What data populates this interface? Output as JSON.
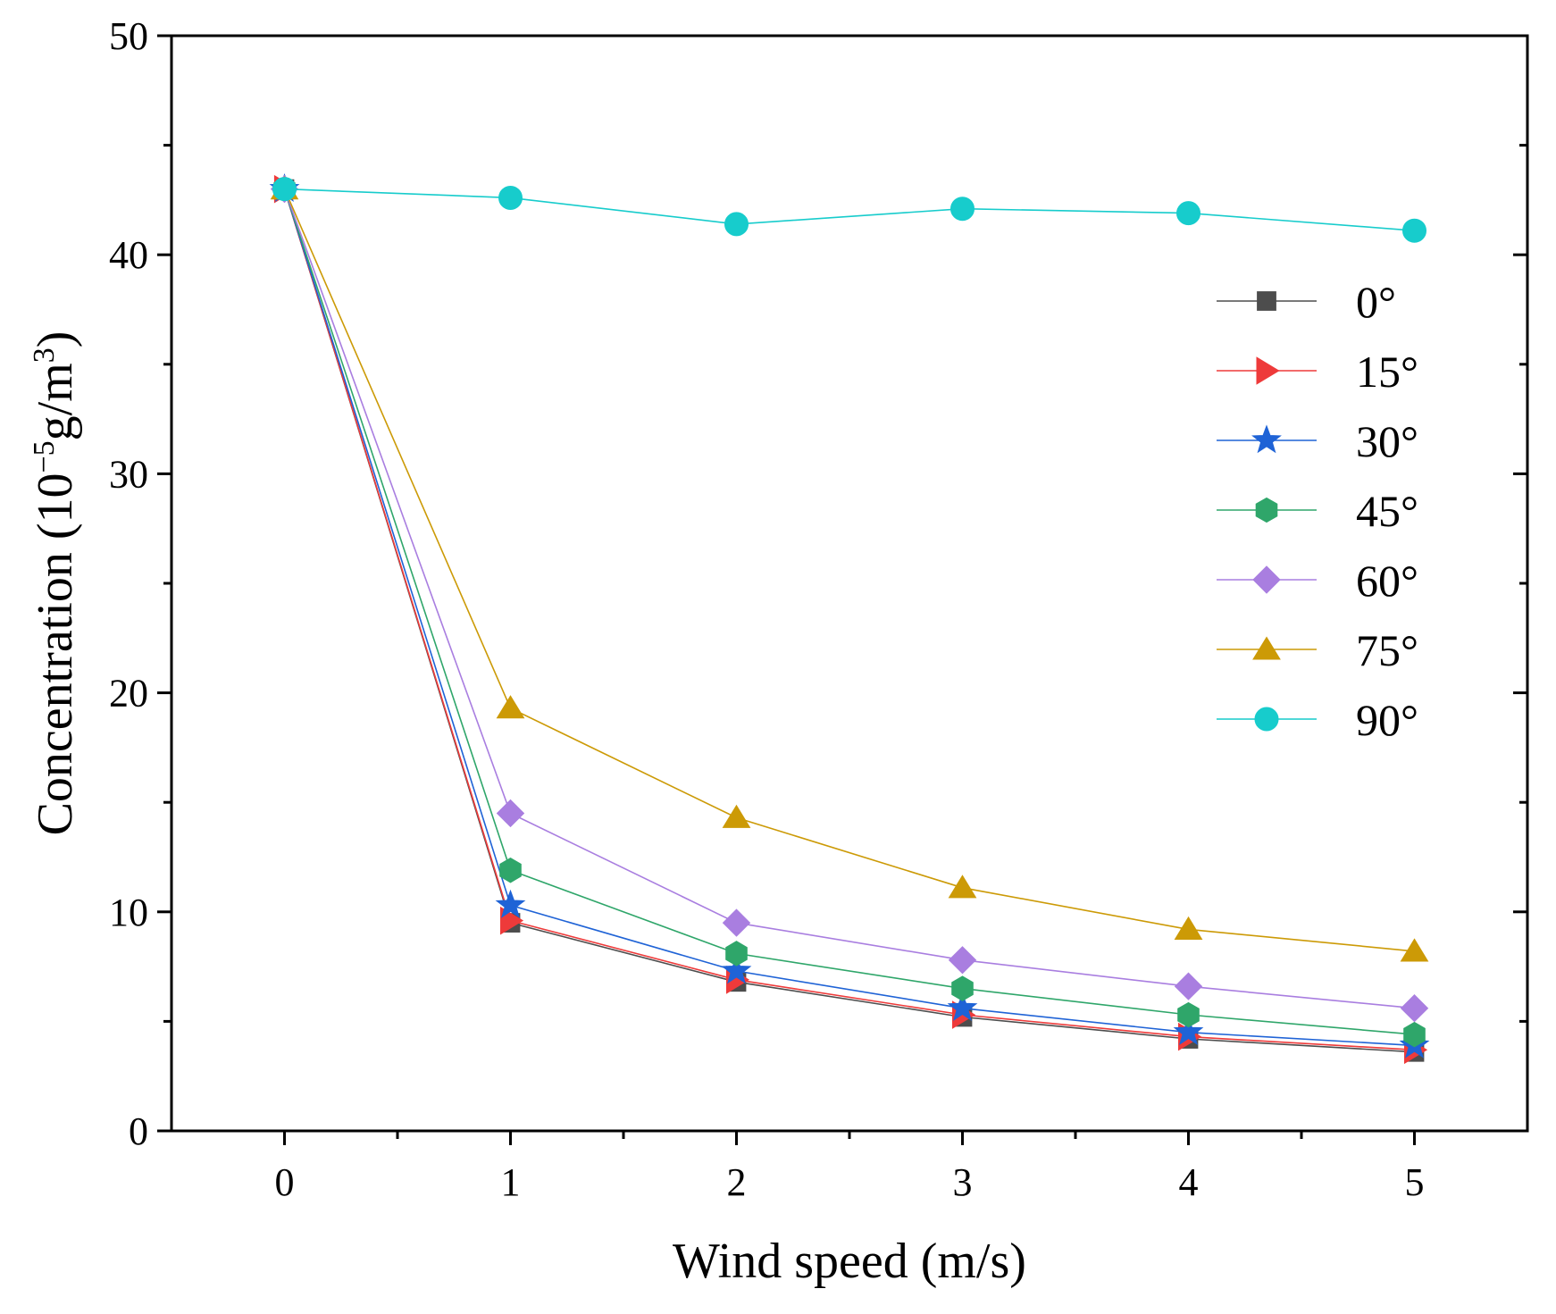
{
  "chart_data": {
    "type": "line",
    "title": "",
    "xlabel": "Wind speed (m/s)",
    "ylabel": {
      "prefix": "Concentration (10",
      "exp1": "−5",
      "middle": "g/m",
      "exp2": "3",
      "suffix": ")"
    },
    "xlim": [
      -0.5,
      5.5
    ],
    "ylim": [
      0,
      50
    ],
    "xticks": [
      0,
      1,
      2,
      3,
      4,
      5
    ],
    "yticks": [
      0,
      10,
      20,
      30,
      40,
      50
    ],
    "x": [
      0,
      1,
      2,
      3,
      4,
      5
    ],
    "grid": false,
    "legend_position": "right",
    "series": [
      {
        "name": "0°",
        "color": "#4d4d4d",
        "marker": "square",
        "values": [
          43.0,
          9.5,
          6.8,
          5.2,
          4.2,
          3.6
        ]
      },
      {
        "name": "15°",
        "color": "#ee3a3a",
        "marker": "triangle-right",
        "values": [
          43.0,
          9.6,
          6.9,
          5.3,
          4.3,
          3.7
        ]
      },
      {
        "name": "30°",
        "color": "#1f63d6",
        "marker": "star",
        "values": [
          43.0,
          10.3,
          7.3,
          5.6,
          4.5,
          3.9
        ]
      },
      {
        "name": "45°",
        "color": "#2fa66a",
        "marker": "hexagon",
        "values": [
          43.0,
          11.9,
          8.1,
          6.5,
          5.3,
          4.4
        ]
      },
      {
        "name": "60°",
        "color": "#a97ee0",
        "marker": "diamond",
        "values": [
          43.0,
          14.5,
          9.5,
          7.8,
          6.6,
          5.6
        ]
      },
      {
        "name": "75°",
        "color": "#cc9a06",
        "marker": "triangle-up",
        "values": [
          43.0,
          19.3,
          14.3,
          11.1,
          9.2,
          8.2
        ]
      },
      {
        "name": "90°",
        "color": "#17cccc",
        "marker": "circle",
        "values": [
          43.0,
          42.6,
          41.4,
          42.1,
          41.9,
          41.1
        ]
      }
    ]
  }
}
